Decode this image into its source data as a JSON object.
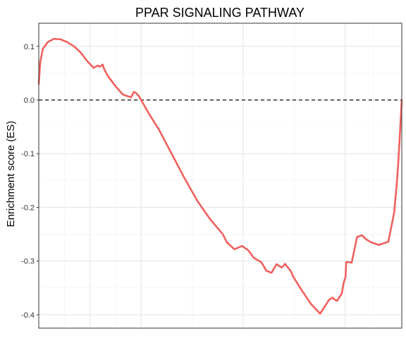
{
  "chart_data": {
    "type": "line",
    "title": "PPAR SIGNALING PATHWAY",
    "xlabel": "",
    "ylabel": "Enrichment score (ES)",
    "xlim": [
      0,
      1
    ],
    "ylim": [
      -0.425,
      0.143
    ],
    "yticks": [
      0.1,
      0.0,
      -0.1,
      -0.2,
      -0.3,
      -0.4
    ],
    "ytick_labels": [
      "0.1",
      "0.0",
      "-0.1",
      "-0.2",
      "-0.3",
      "-0.4"
    ],
    "xgrid_major": [
      0.141,
      0.282,
      0.563,
      0.844
    ],
    "reference_line": {
      "y": 0.0,
      "style": "dashed"
    },
    "grid": true,
    "series": [
      {
        "color": "#F0605D",
        "x": [
          0.0,
          0.004,
          0.011,
          0.025,
          0.042,
          0.06,
          0.078,
          0.099,
          0.116,
          0.134,
          0.151,
          0.162,
          0.169,
          0.176,
          0.18,
          0.19,
          0.211,
          0.232,
          0.254,
          0.262,
          0.268,
          0.275,
          0.282,
          0.303,
          0.331,
          0.366,
          0.401,
          0.437,
          0.472,
          0.507,
          0.518,
          0.539,
          0.56,
          0.577,
          0.585,
          0.592,
          0.613,
          0.627,
          0.641,
          0.655,
          0.669,
          0.676,
          0.678,
          0.69,
          0.697,
          0.7,
          0.725,
          0.75,
          0.775,
          0.8,
          0.81,
          0.815,
          0.822,
          0.835,
          0.84,
          0.845,
          0.847,
          0.853,
          0.862,
          0.877,
          0.891,
          0.896,
          0.903,
          0.915,
          0.937,
          0.963,
          0.979,
          0.983,
          0.987,
          0.991,
          1.0
        ],
        "y": [
          0.03,
          0.07,
          0.095,
          0.108,
          0.114,
          0.113,
          0.108,
          0.099,
          0.088,
          0.072,
          0.06,
          0.064,
          0.062,
          0.066,
          0.058,
          0.045,
          0.026,
          0.01,
          0.005,
          0.015,
          0.013,
          0.008,
          0.0,
          -0.025,
          -0.055,
          -0.1,
          -0.145,
          -0.188,
          -0.222,
          -0.25,
          -0.265,
          -0.278,
          -0.272,
          -0.28,
          -0.287,
          -0.294,
          -0.302,
          -0.318,
          -0.322,
          -0.306,
          -0.312,
          -0.308,
          -0.305,
          -0.315,
          -0.322,
          -0.328,
          -0.355,
          -0.38,
          -0.398,
          -0.372,
          -0.368,
          -0.372,
          -0.374,
          -0.36,
          -0.34,
          -0.33,
          -0.302,
          -0.302,
          -0.303,
          -0.255,
          -0.252,
          -0.256,
          -0.26,
          -0.265,
          -0.27,
          -0.264,
          -0.21,
          -0.18,
          -0.15,
          -0.11,
          0.0
        ]
      }
    ]
  }
}
